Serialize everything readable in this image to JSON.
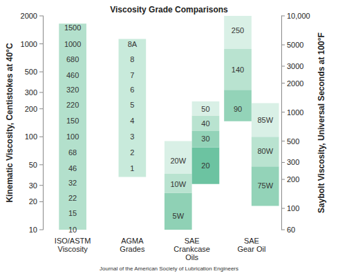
{
  "chart_data": {
    "type": "range_bar",
    "title": "Viscosity Grade Comparisons",
    "source": "Journal of the American Society of Lubrication Engineers",
    "y_label": "Kinematic Viscosity, Centistokes at 40°C",
    "y2_label": "Saybolt Viscosity, Universal Seconds at 100°F",
    "log": true,
    "grid": false,
    "ylim": [
      10,
      2000
    ],
    "yticks": [
      10,
      20,
      30,
      50,
      100,
      200,
      300,
      500,
      1000,
      2000
    ],
    "y2lim": [
      60,
      10000
    ],
    "y2ticks": [
      60,
      100,
      200,
      300,
      500,
      1000,
      2000,
      3000,
      5000,
      {
        "value": 10000,
        "label": "10,000"
      }
    ],
    "categories": [
      "ISO/ASTM\nViscosity",
      "AGMA\nGrades",
      "SAE\nCrankcase\nOils",
      "SAE\nGear Oil"
    ],
    "columns": [
      [
        {
          "segments": [
            {
              "low": 10,
              "high": 1650,
              "color": "#b3e0cc"
            }
          ],
          "labels": [
            {
              "text": "10",
              "value": 10
            },
            {
              "text": "15",
              "value": 15
            },
            {
              "text": "22",
              "value": 22
            },
            {
              "text": "32",
              "value": 32
            },
            {
              "text": "46",
              "value": 46
            },
            {
              "text": "68",
              "value": 68
            },
            {
              "text": "100",
              "value": 100
            },
            {
              "text": "150",
              "value": 150
            },
            {
              "text": "220",
              "value": 220
            },
            {
              "text": "320",
              "value": 320
            },
            {
              "text": "460",
              "value": 460
            },
            {
              "text": "680",
              "value": 680
            },
            {
              "text": "1000",
              "value": 1000
            },
            {
              "text": "1500",
              "value": 1500
            }
          ]
        }
      ],
      [
        {
          "segments": [
            {
              "low": 37,
              "high": 1130,
              "color": "#c8eadb"
            }
          ],
          "labels": [
            {
              "text": "1",
              "value": 46
            },
            {
              "text": "2",
              "value": 68
            },
            {
              "text": "3",
              "value": 100
            },
            {
              "text": "4",
              "value": 150
            },
            {
              "text": "5",
              "value": 220
            },
            {
              "text": "6",
              "value": 320
            },
            {
              "text": "7",
              "value": 460
            },
            {
              "text": "8",
              "value": 680
            },
            {
              "text": "8A",
              "value": 1000
            }
          ]
        }
      ],
      [
        {
          "segments": [
            {
              "low": 10,
              "high": 25,
              "color": "#8fd1b5"
            },
            {
              "low": 25,
              "high": 40,
              "color": "#b9e3d0"
            },
            {
              "low": 40,
              "high": 90,
              "color": "#d9f0e6"
            }
          ],
          "labels": [
            {
              "text": "5W",
              "value": 14
            },
            {
              "text": "10W",
              "value": 31
            },
            {
              "text": "20W",
              "value": 55
            }
          ]
        },
        {
          "segments": [
            {
              "low": 31,
              "high": 77,
              "color": "#6cc3a1"
            },
            {
              "low": 77,
              "high": 115,
              "color": "#93d3b8"
            },
            {
              "low": 115,
              "high": 169,
              "color": "#b9e3d0"
            },
            {
              "low": 169,
              "high": 240,
              "color": "#d9f0e6"
            }
          ],
          "labels": [
            {
              "text": "20",
              "value": 49
            },
            {
              "text": "30",
              "value": 95
            },
            {
              "text": "40",
              "value": 139
            },
            {
              "text": "50",
              "value": 200
            }
          ]
        }
      ],
      [
        {
          "segments": [
            {
              "low": 147,
              "high": 320,
              "color": "#93d3b8"
            },
            {
              "low": 320,
              "high": 880,
              "color": "#b9e3d0"
            },
            {
              "low": 880,
              "high": 2000,
              "color": "#d9f0e6"
            }
          ],
          "labels": [
            {
              "text": "90",
              "value": 200
            },
            {
              "text": "140",
              "value": 526
            },
            {
              "text": "250",
              "value": 1390
            }
          ]
        },
        {
          "segments": [
            {
              "low": 18,
              "high": 48,
              "color": "#93d3b8"
            },
            {
              "low": 48,
              "high": 100,
              "color": "#b9e3d0"
            },
            {
              "low": 100,
              "high": 230,
              "color": "#d9f0e6"
            }
          ],
          "labels": [
            {
              "text": "75W",
              "value": 30
            },
            {
              "text": "80W",
              "value": 70
            },
            {
              "text": "85W",
              "value": 152
            }
          ]
        }
      ]
    ]
  }
}
